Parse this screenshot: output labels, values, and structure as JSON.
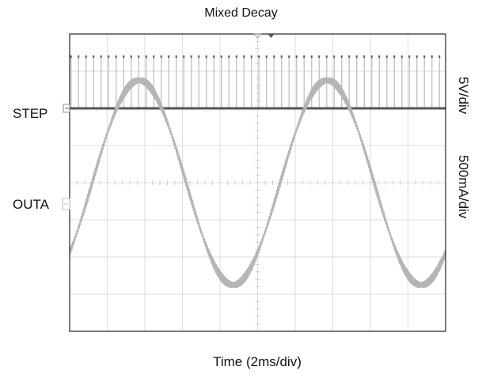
{
  "chart_data": {
    "type": "line",
    "title": "Mixed Decay",
    "xlabel": "Time (2ms/div)",
    "channel_labels": {
      "step": "STEP",
      "outa": "OUTA"
    },
    "scale_labels": {
      "step": "5V/div",
      "outa": "500mA/div"
    },
    "grid": true,
    "divisions": {
      "x": 10,
      "y": 8
    },
    "xlim_div": [
      0,
      10
    ],
    "series": [
      {
        "id": "step",
        "kind": "pulse-train",
        "pulses_per_div": 5,
        "high_div": 1.4,
        "low_div": 0,
        "color": "#555555"
      },
      {
        "id": "outa",
        "kind": "sinusoid",
        "amplitude_div": 2.75,
        "period_div": 5,
        "peak_first_div": 1.85,
        "color": "#b5b5b5"
      }
    ]
  }
}
